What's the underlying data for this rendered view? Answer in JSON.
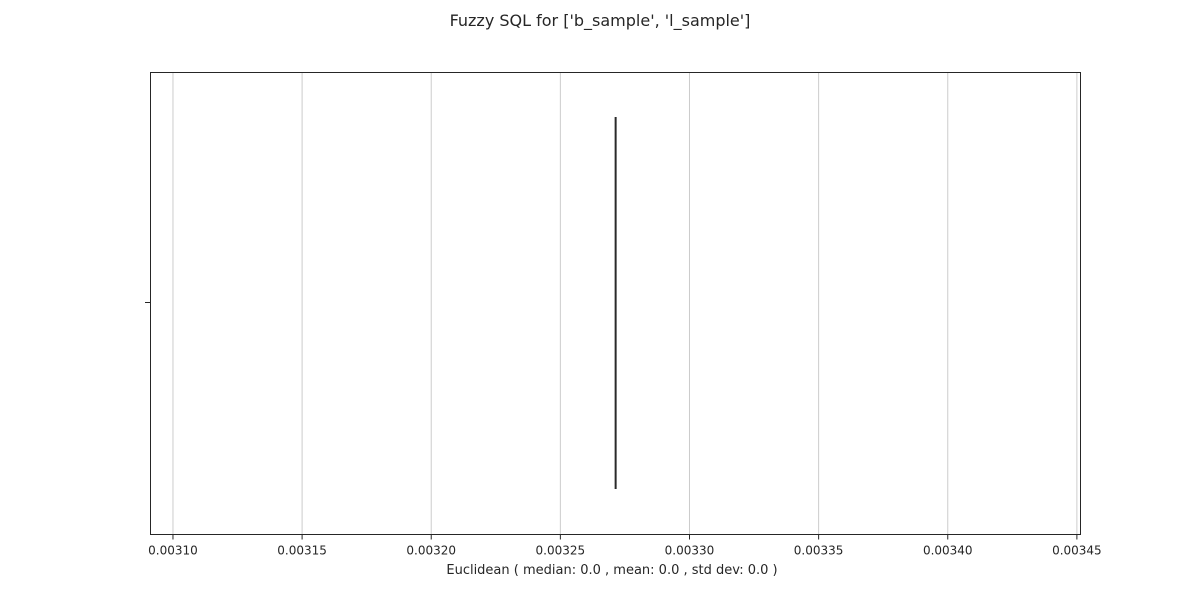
{
  "chart_data": {
    "type": "box",
    "title": "Fuzzy SQL for ['b_sample', 'l_sample']",
    "xlabel": "Euclidean ( median: 0.0 , mean: 0.0 , std dev: 0.0 )",
    "ylabel": "",
    "xlim": [
      0.0030913,
      0.0034514
    ],
    "xticks": [
      0.0031,
      0.00315,
      0.0032,
      0.00325,
      0.0033,
      0.00335,
      0.0034,
      0.00345
    ],
    "xtick_labels": [
      "0.00310",
      "0.00315",
      "0.00320",
      "0.00325",
      "0.00330",
      "0.00335",
      "0.00340",
      "0.00345"
    ],
    "grid": true,
    "orientation": "horizontal",
    "boxes": [
      {
        "median": 0.0032714,
        "q1": 0.0032714,
        "q3": 0.0032714,
        "whisker_low": 0.0032714,
        "whisker_high": 0.0032714
      }
    ],
    "colors": {
      "axis": "#262626",
      "grid": "#cccccc",
      "box_line": "#2a2a2a",
      "text": "#262626"
    }
  }
}
